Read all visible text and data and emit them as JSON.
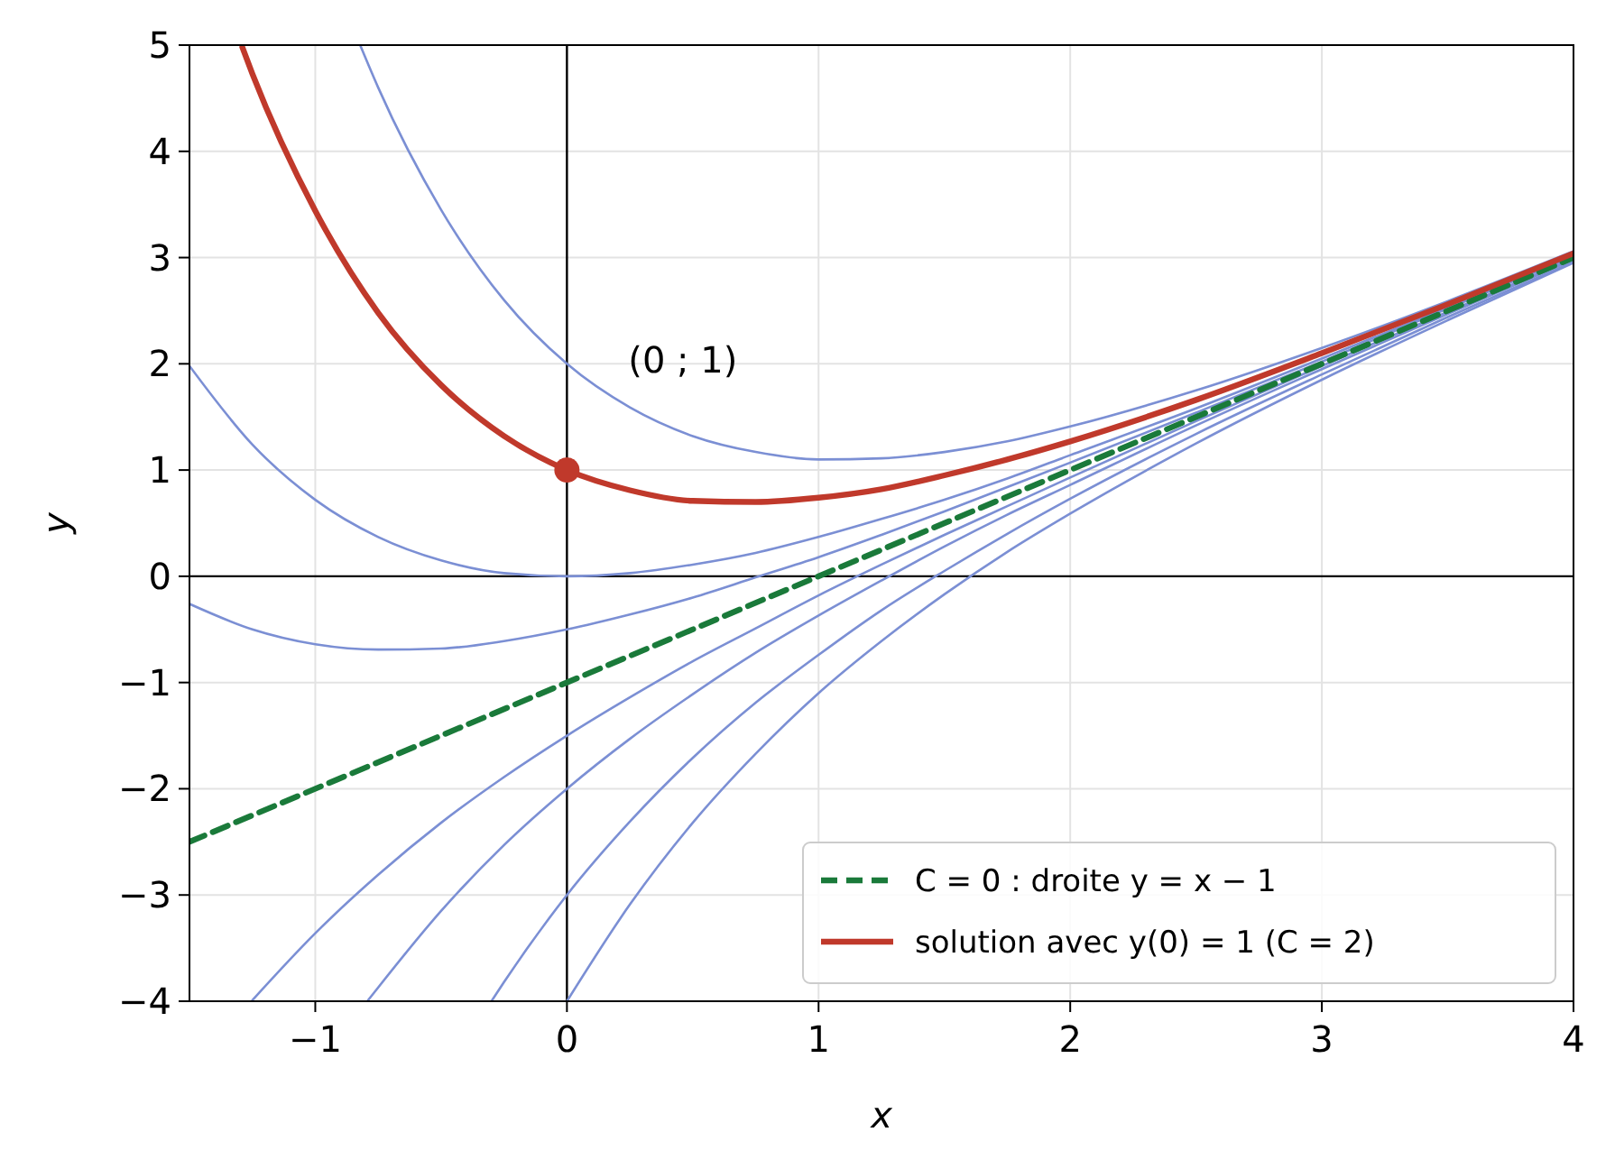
{
  "chart_data": {
    "type": "line",
    "xlabel": "x",
    "ylabel": "y",
    "xlim": [
      -1.5,
      4
    ],
    "ylim": [
      -4,
      5
    ],
    "xticks": [
      {
        "value": -1,
        "label": "−1"
      },
      0,
      1,
      2,
      3,
      4
    ],
    "yticks": [
      {
        "value": -4,
        "label": "−4"
      },
      {
        "value": -3,
        "label": "−3"
      },
      {
        "value": -2,
        "label": "−2"
      },
      {
        "value": -1,
        "label": "−1"
      },
      0,
      1,
      2,
      3,
      4,
      5
    ],
    "grid": true,
    "legend": "bottom right",
    "annotations": [
      {
        "text": "(0 ; 1)",
        "x": 0,
        "y": 1
      }
    ],
    "series": [
      {
        "color": "#7b8fd4",
        "line_style": "solid",
        "x": [
          -0.82,
          -0.75,
          -0.5,
          -0.25,
          0,
          0.25,
          0.5,
          0.75,
          1,
          1.25,
          1.5,
          1.75,
          2,
          2.5,
          3,
          3.5,
          4
        ],
        "values": [
          4.99,
          4.6,
          3.45,
          2.6,
          2,
          1.59,
          1.32,
          1.17,
          1.1,
          1.11,
          1.17,
          1.27,
          1.41,
          1.75,
          2.15,
          2.59,
          3.06
        ]
      },
      {
        "color": "#7b8fd4",
        "line_style": "solid",
        "x": [
          -1.5,
          -1.25,
          -1,
          -0.75,
          -0.5,
          -0.25,
          0,
          0.25,
          0.5,
          0.75,
          1,
          1.25,
          1.5,
          1.75,
          2,
          2.5,
          3,
          3.5,
          4
        ],
        "values": [
          1.98,
          1.24,
          0.72,
          0.37,
          0.15,
          0.03,
          0,
          0.03,
          0.11,
          0.22,
          0.37,
          0.54,
          0.72,
          0.92,
          1.14,
          1.58,
          2.05,
          2.53,
          3.02
        ]
      },
      {
        "color": "#7b8fd4",
        "line_style": "solid",
        "x": [
          -1.5,
          -1.25,
          -1,
          -0.75,
          -0.5,
          -0.25,
          0,
          0.25,
          0.5,
          0.75,
          1,
          1.25,
          1.5,
          1.75,
          2,
          2.5,
          3,
          3.5,
          4
        ],
        "values": [
          -0.26,
          -0.5,
          -0.64,
          -0.69,
          -0.68,
          -0.61,
          -0.5,
          -0.36,
          -0.2,
          -0.01,
          0.18,
          0.39,
          0.61,
          0.84,
          1.07,
          1.54,
          2.02,
          2.52,
          3.01
        ]
      },
      {
        "color": "#7b8fd4",
        "line_style": "solid",
        "x": [
          -1.25,
          -1,
          -0.75,
          -0.5,
          -0.25,
          0,
          0.25,
          0.5,
          0.75,
          1,
          1.25,
          1.5,
          1.75,
          2,
          2.5,
          3,
          3.5,
          4
        ],
        "values": [
          -3.99,
          -3.36,
          -2.81,
          -2.32,
          -1.89,
          -1.5,
          -1.14,
          -0.8,
          -0.49,
          -0.18,
          0.11,
          0.39,
          0.66,
          0.93,
          1.46,
          1.98,
          2.49,
          2.99
        ]
      },
      {
        "color": "#7b8fd4",
        "line_style": "solid",
        "x": [
          -0.79,
          -0.75,
          -0.5,
          -0.25,
          0,
          0.25,
          0.5,
          0.75,
          1,
          1.25,
          1.5,
          1.75,
          2,
          2.5,
          3,
          3.5,
          4
        ],
        "values": [
          -3.99,
          -3.87,
          -3.15,
          -2.53,
          -2,
          -1.53,
          -1.11,
          -0.72,
          -0.37,
          -0.04,
          0.28,
          0.58,
          0.86,
          1.42,
          1.95,
          2.47,
          2.98
        ]
      },
      {
        "color": "#7b8fd4",
        "line_style": "solid",
        "x": [
          -0.3,
          -0.25,
          0,
          0.25,
          0.5,
          0.75,
          1,
          1.25,
          1.5,
          1.75,
          2,
          2.5,
          3,
          3.5,
          4
        ],
        "values": [
          -4,
          -3.82,
          -3,
          -2.31,
          -1.71,
          -1.19,
          -0.74,
          -0.32,
          0.05,
          0.4,
          0.73,
          1.34,
          1.9,
          2.44,
          2.96
        ]
      },
      {
        "color": "#7b8fd4",
        "line_style": "solid",
        "x": [
          0,
          0.25,
          0.5,
          0.75,
          1,
          1.25,
          1.5,
          1.75,
          2,
          2.5,
          3,
          3.5,
          4
        ],
        "values": [
          -4,
          -3.09,
          -2.32,
          -1.67,
          -1.1,
          -0.61,
          -0.17,
          0.23,
          0.59,
          1.25,
          1.85,
          2.41,
          2.95
        ]
      },
      {
        "name": "C = 0 : droite y = x − 1",
        "color": "#1a7a3a",
        "line_style": "dashed",
        "x": [
          -1.5,
          4
        ],
        "values": [
          -2.5,
          3
        ]
      },
      {
        "name": "solution avec y(0) = 1 (C = 2)",
        "color": "#c0392b",
        "line_style": "solid",
        "x": [
          -1.29,
          -1.25,
          -1,
          -0.75,
          -0.5,
          -0.25,
          0,
          0.25,
          0.5,
          0.75,
          1,
          1.25,
          1.5,
          1.75,
          2,
          2.5,
          3,
          3.5,
          4
        ],
        "values": [
          4.98,
          4.73,
          3.44,
          2.48,
          1.8,
          1.32,
          1,
          0.81,
          0.71,
          0.7,
          0.74,
          0.82,
          0.95,
          1.1,
          1.27,
          1.66,
          2.1,
          2.56,
          3.04
        ]
      },
      {
        "type": "scatter",
        "marker": "circle",
        "color": "#c0392b",
        "x": [
          0
        ],
        "values": [
          1
        ]
      }
    ]
  }
}
